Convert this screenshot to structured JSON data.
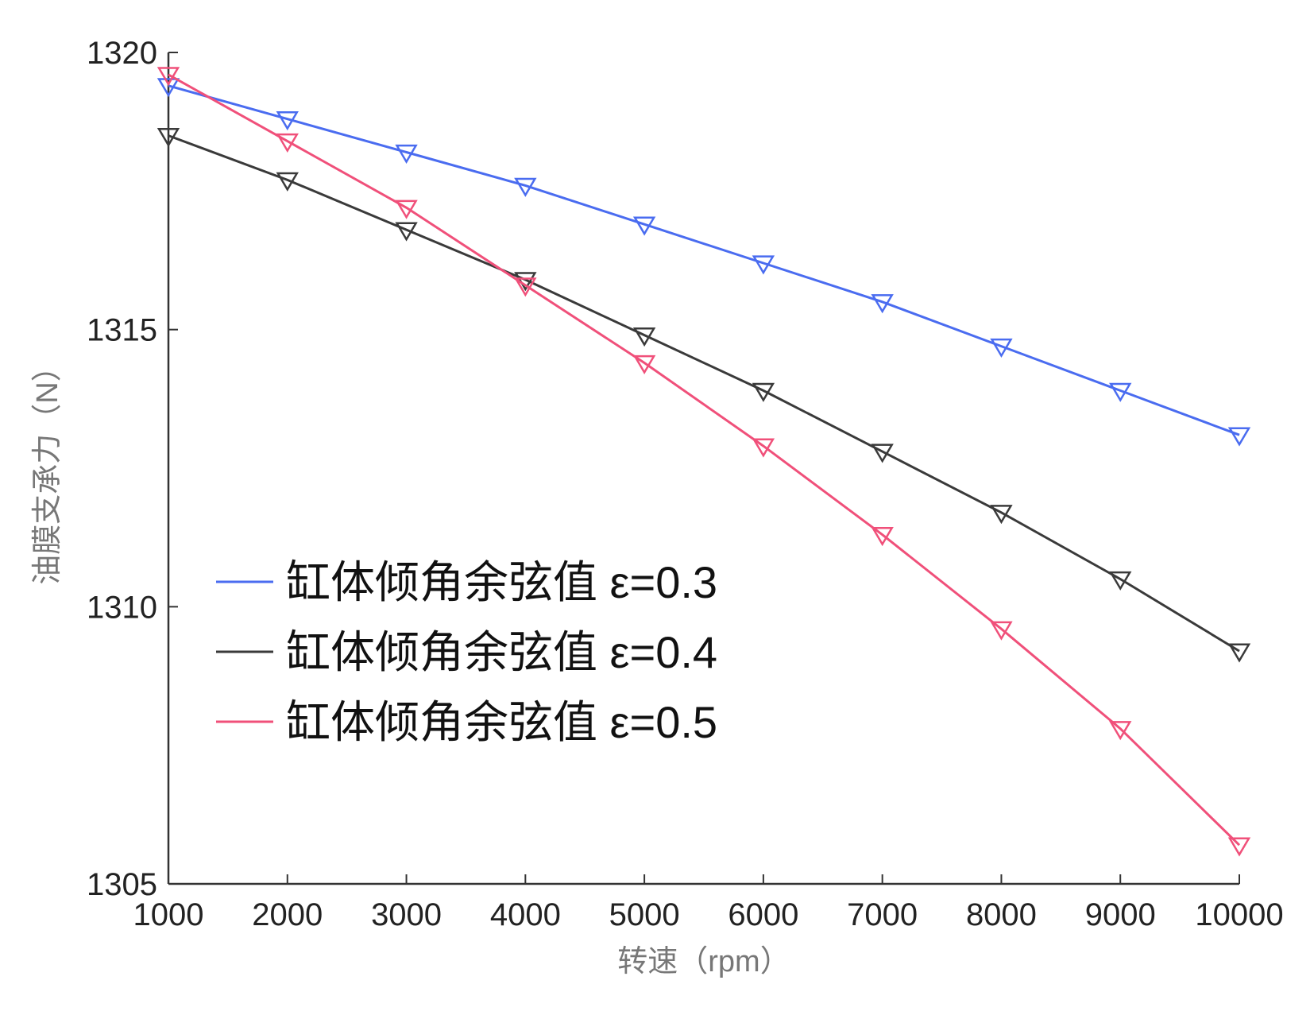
{
  "chart_data": {
    "type": "line",
    "title": "",
    "xlabel": "转速（rpm）",
    "ylabel": "油膜支承力（N）",
    "x": [
      1000,
      2000,
      3000,
      4000,
      5000,
      6000,
      7000,
      8000,
      9000,
      10000
    ],
    "xticks": [
      "1000",
      "2000",
      "3000",
      "4000",
      "5000",
      "6000",
      "7000",
      "8000",
      "9000",
      "10000"
    ],
    "yticks": [
      "1305",
      "1310",
      "1315",
      "1320"
    ],
    "xlim": [
      1000,
      10000
    ],
    "ylim": [
      1305,
      1320
    ],
    "grid": false,
    "legend_position": "lower-left",
    "marker": "down-triangle",
    "series": [
      {
        "name": "缸体倾角余弦值 ε=0.3",
        "color": "#4a6cf0",
        "values": [
          1319.4,
          1318.8,
          1318.2,
          1317.6,
          1316.9,
          1316.2,
          1315.5,
          1314.7,
          1313.9,
          1313.1
        ]
      },
      {
        "name": "缸体倾角余弦值 ε=0.4",
        "color": "#3a3a3a",
        "values": [
          1318.5,
          1317.7,
          1316.8,
          1315.9,
          1314.9,
          1313.9,
          1312.8,
          1311.7,
          1310.5,
          1309.2
        ]
      },
      {
        "name": "缸体倾角余弦值 ε=0.5",
        "color": "#f0507a",
        "values": [
          1319.6,
          1318.4,
          1317.2,
          1315.8,
          1314.4,
          1312.9,
          1311.3,
          1309.6,
          1307.8,
          1305.7
        ]
      }
    ]
  }
}
